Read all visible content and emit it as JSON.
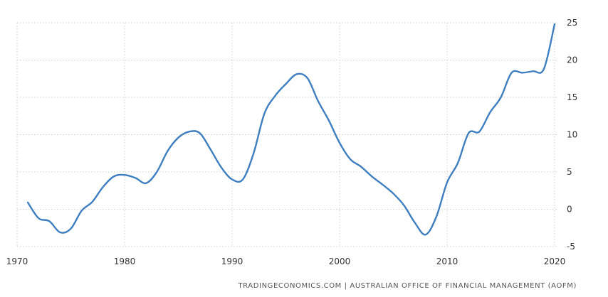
{
  "source_text": "TRADINGECONOMICS.COM  |  AUSTRALIAN OFFICE OF FINANCIAL MANAGEMENT (AOFM)",
  "colors": {
    "line": "#3f7fbf",
    "grid": "#cfcfcf",
    "text": "#333333"
  },
  "chart_data": {
    "type": "line",
    "title": "",
    "xlabel": "",
    "ylabel": "",
    "xlim": [
      1970,
      2021
    ],
    "ylim": [
      -5,
      25
    ],
    "grid": true,
    "y_axis_side": "right",
    "x_ticks": [
      1970,
      1980,
      1990,
      2000,
      2010,
      2020
    ],
    "y_ticks": [
      -5,
      0,
      5,
      10,
      15,
      20,
      25
    ],
    "x": [
      1971,
      1972,
      1973,
      1974,
      1975,
      1976,
      1977,
      1978,
      1979,
      1980,
      1981,
      1982,
      1983,
      1984,
      1985,
      1986,
      1987,
      1988,
      1989,
      1990,
      1991,
      1992,
      1993,
      1994,
      1995,
      1996,
      1997,
      1998,
      1999,
      2000,
      2001,
      2002,
      2003,
      2004,
      2005,
      2006,
      2007,
      2008,
      2009,
      2010,
      2011,
      2012,
      2013,
      2014,
      2015,
      2016,
      2017,
      2018,
      2019,
      2020
    ],
    "series": [
      {
        "values": [
          0.9,
          -1.2,
          -1.6,
          -3.1,
          -2.6,
          -0.2,
          1.0,
          3.0,
          4.4,
          4.6,
          4.2,
          3.5,
          5.0,
          7.8,
          9.6,
          10.4,
          10.2,
          8.0,
          5.6,
          4.0,
          4.0,
          7.5,
          12.8,
          15.2,
          16.8,
          18.1,
          17.6,
          14.5,
          11.9,
          8.9,
          6.7,
          5.7,
          4.4,
          3.3,
          2.1,
          0.5,
          -1.8,
          -3.4,
          -1.0,
          3.6,
          6.2,
          10.2,
          10.4,
          13.0,
          15.0,
          18.3,
          18.3,
          18.5,
          18.8,
          24.8
        ]
      }
    ]
  }
}
